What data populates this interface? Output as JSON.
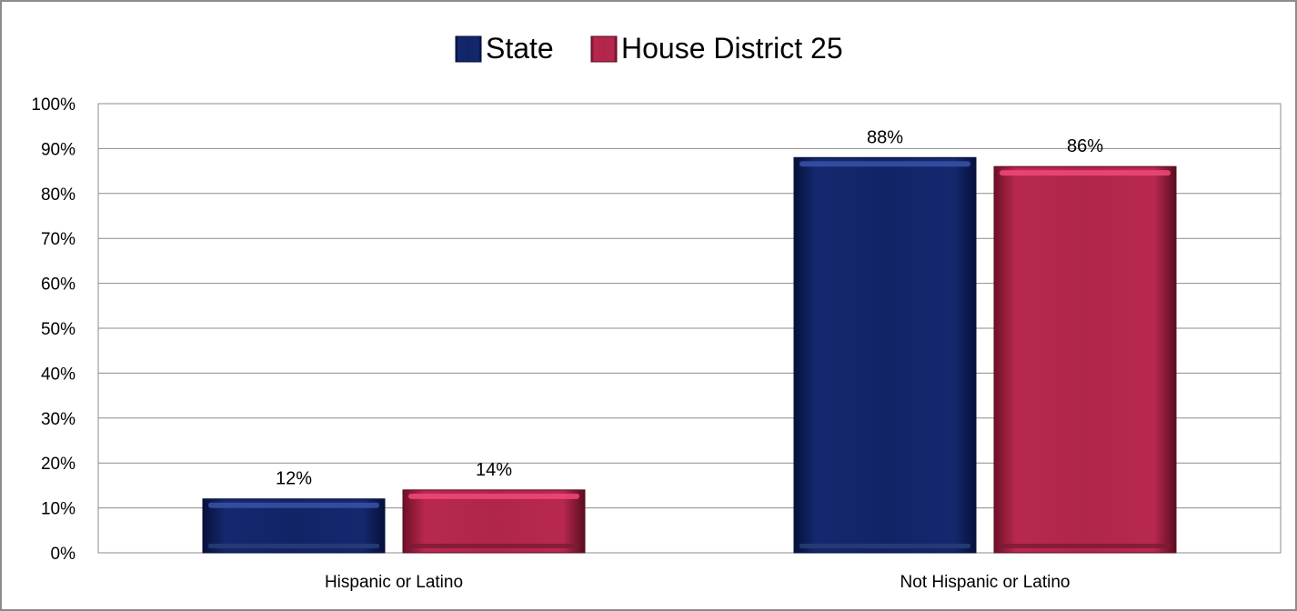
{
  "chart_data": {
    "type": "bar",
    "categories": [
      "Hispanic or Latino",
      "Not Hispanic or Latino"
    ],
    "series": [
      {
        "name": "State",
        "values": [
          12,
          88
        ],
        "labels": [
          "12%",
          "88%"
        ],
        "color": "#0f2163"
      },
      {
        "name": "House District 25",
        "values": [
          14,
          86
        ],
        "labels": [
          "14%",
          "86%"
        ],
        "color": "#b0264a"
      }
    ],
    "ylim": [
      0,
      100
    ],
    "yticks": [
      0,
      10,
      20,
      30,
      40,
      50,
      60,
      70,
      80,
      90,
      100
    ],
    "ytick_labels": [
      "0%",
      "10%",
      "20%",
      "30%",
      "40%",
      "50%",
      "60%",
      "70%",
      "80%",
      "90%",
      "100%"
    ],
    "grid": true,
    "legend_position": "top"
  }
}
